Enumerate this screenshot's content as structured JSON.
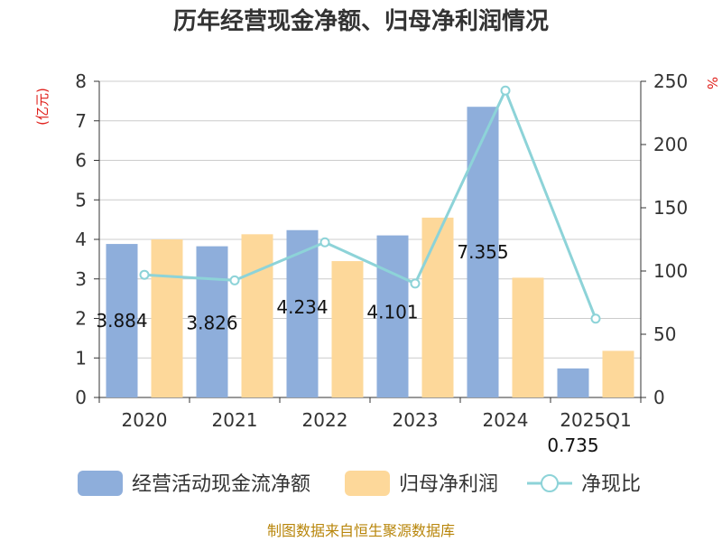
{
  "chart_data": {
    "type": "bar",
    "title": "历年经营现金净额、归母净利润情况",
    "categories": [
      "2020",
      "2021",
      "2022",
      "2023",
      "2024",
      "2025Q1"
    ],
    "y_left": {
      "label": "(亿元)",
      "min": 0,
      "max": 8,
      "ticks": [
        "0",
        "1",
        "2",
        "3",
        "4",
        "5",
        "6",
        "7",
        "8"
      ]
    },
    "y_right": {
      "label": "%",
      "min": 0,
      "max": 250,
      "ticks": [
        "0",
        "50",
        "100",
        "150",
        "200",
        "250"
      ]
    },
    "grid": true,
    "legend_position": "bottom",
    "series": [
      {
        "name": "经营活动现金流净额",
        "type": "bar",
        "axis": "left",
        "color": "#8eaedb",
        "values": [
          3.884,
          3.826,
          4.234,
          4.101,
          7.355,
          0.735
        ],
        "labels": [
          "3.884",
          "3.826",
          "4.234",
          "4.101",
          "7.355",
          "0.735"
        ]
      },
      {
        "name": "归母净利润",
        "type": "bar",
        "axis": "left",
        "color": "#fdd89a",
        "values": [
          4.0,
          4.13,
          3.45,
          4.55,
          3.03,
          1.18
        ]
      },
      {
        "name": "净现比",
        "type": "line",
        "axis": "right",
        "color": "#8dd3d8",
        "values": [
          97,
          92.6,
          122.7,
          90.1,
          242.7,
          62.3
        ]
      }
    ],
    "source": "制图数据来自恒生聚源数据库"
  }
}
